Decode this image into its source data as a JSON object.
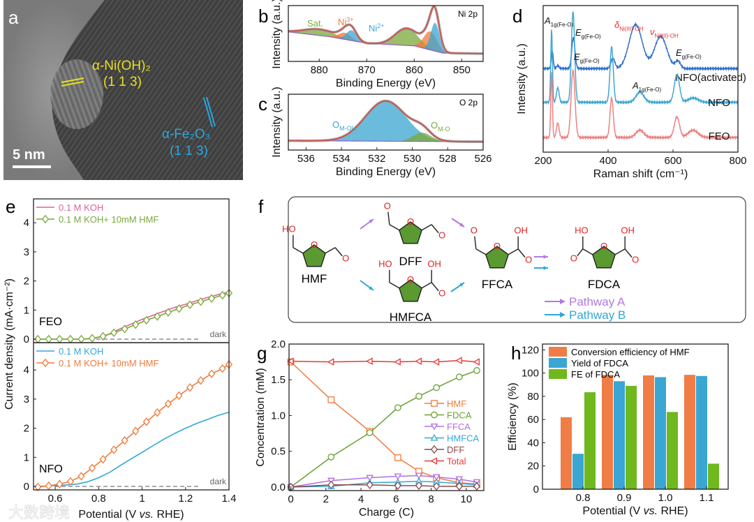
{
  "panel_labels": {
    "a": "a",
    "b": "b",
    "c": "c",
    "d": "d",
    "e": "e",
    "f": "f",
    "g": "g",
    "h": "h"
  },
  "panel_a": {
    "phase1": "α-Ni(OH)₂",
    "phase1_plane": "(1 1 3)",
    "phase2": "α-Fe₂O₃",
    "phase2_plane": "(1 1 3)",
    "scale_bar": "5 nm",
    "colors": {
      "phase1": "#e8e020",
      "phase2": "#2aa7e0"
    }
  },
  "watermark": "大数跨境",
  "chart_data": [
    {
      "id": "b",
      "type": "area",
      "title": "Ni 2p",
      "xlabel": "Binding Energy (eV)",
      "ylabel": "Intensity (a.u.)",
      "xlim": [
        886.5,
        845.5
      ],
      "xticks": [
        880,
        870,
        860,
        850
      ],
      "baseline": [
        [
          886.5,
          0.49
        ],
        [
          878,
          0.4
        ],
        [
          870,
          0.27
        ],
        [
          860,
          0.22
        ],
        [
          854,
          0.08
        ],
        [
          845.5,
          0.07
        ]
      ],
      "components": [
        {
          "name": "Sat.",
          "center": 880,
          "height": 0.12,
          "width": 3.2,
          "color": "#7aa83a"
        },
        {
          "name": "Ni3+",
          "center": 874.6,
          "height": 0.13,
          "width": 1.3,
          "color": "#f07a3a"
        },
        {
          "name": "Ni2+",
          "center": 873.2,
          "height": 0.2,
          "width": 1.1,
          "color": "#3aa6d0"
        },
        {
          "name": "Sat.",
          "center": 861.6,
          "height": 0.33,
          "width": 2.4,
          "color": "#7aa83a"
        },
        {
          "name": "Ni3+",
          "center": 856.6,
          "height": 0.36,
          "width": 1.4,
          "color": "#f07a3a"
        },
        {
          "name": "Ni2+",
          "center": 855.6,
          "height": 0.55,
          "width": 0.9,
          "color": "#3aa6d0"
        }
      ],
      "annotations": [
        {
          "text": "Sat.",
          "color": "#7aa83a"
        },
        {
          "text": "Ni",
          "sup": "3+",
          "color": "#f07a3a"
        },
        {
          "text": "Ni",
          "sup": "2+",
          "color": "#3aa6d0"
        }
      ]
    },
    {
      "id": "c",
      "type": "area",
      "title": "O 2p",
      "xlabel": "Binding Energy (eV)",
      "ylabel": "Intensity (a.u.)",
      "xlim": [
        537,
        526
      ],
      "xticks": [
        536,
        534,
        532,
        530,
        528,
        526
      ],
      "baseline": [
        [
          537,
          0.1
        ],
        [
          526,
          0.08
        ]
      ],
      "components": [
        {
          "name": "O M-OH",
          "center": 531.5,
          "height": 0.78,
          "width": 1.15,
          "color": "#3aa6d0"
        },
        {
          "name": "O M-O",
          "center": 529.45,
          "height": 0.17,
          "width": 0.5,
          "color": "#7aa83a"
        }
      ],
      "annotations": [
        {
          "text": "O",
          "sub": "M-OH",
          "color": "#3aa6d0"
        },
        {
          "text": "O",
          "sub": "M-O",
          "color": "#7aa83a"
        }
      ]
    },
    {
      "id": "d",
      "type": "line",
      "xlabel": "Raman shift (cm⁻¹)",
      "ylabel": "Intensity (a.u.)",
      "xlim": [
        200,
        800
      ],
      "xticks": [
        200,
        400,
        600,
        800
      ],
      "series": [
        {
          "name": "NFO(activated)",
          "color": "#2f6fc9",
          "offset": 0.57,
          "peaks": [
            [
              228,
              0.12,
              3
            ],
            [
              245,
              0.02,
              4
            ],
            [
              293,
              0.21,
              5
            ],
            [
              415,
              0.07,
              6
            ],
            [
              485,
              0.3,
              20
            ],
            [
              562,
              0.22,
              19
            ],
            [
              615,
              0.05,
              8
            ]
          ]
        },
        {
          "name": "NFO",
          "color": "#3fa6d2",
          "offset": 0.34,
          "peaks": [
            [
              226,
              0.5,
              2.5
            ],
            [
              245,
              0.1,
              4
            ],
            [
              292,
              0.62,
              5
            ],
            [
              411,
              0.38,
              5
            ],
            [
              498,
              0.07,
              12
            ],
            [
              612,
              0.19,
              8
            ],
            [
              662,
              0.03,
              15
            ]
          ]
        },
        {
          "name": "FEO",
          "color": "#f08080",
          "offset": 0.1,
          "peaks": [
            [
              226,
              0.45,
              2.5
            ],
            [
              245,
              0.1,
              4
            ],
            [
              292,
              0.46,
              6
            ],
            [
              411,
              0.27,
              5
            ],
            [
              498,
              0.05,
              12
            ],
            [
              612,
              0.14,
              8
            ],
            [
              662,
              0.05,
              15
            ]
          ]
        }
      ],
      "annotations": [
        {
          "main": "A",
          "sub": "1g(Fe-O)",
          "color": "#111"
        },
        {
          "main": "E",
          "sub": "g(Fe-O)",
          "color": "#111"
        },
        {
          "main": "E",
          "sub": "g(Fe-O)",
          "color": "#111"
        },
        {
          "main": "δ",
          "sub": "Ni(III)-OH",
          "color": "#e83030"
        },
        {
          "main": "ν",
          "sub": "Ni(III)-OH",
          "color": "#e83030"
        },
        {
          "main": "E",
          "sub": "g(Fe-O)",
          "color": "#111"
        },
        {
          "main": "A",
          "sub": "1g(Fe-O)",
          "color": "#111"
        }
      ]
    },
    {
      "id": "e",
      "type": "line",
      "xlabel": "Potential (V vs. RHE)",
      "xlabel_parts": [
        "Potential (V ",
        "vs.",
        " RHE)"
      ],
      "ylabel": "Current density (mA·cm⁻²)",
      "xlim": [
        0.5,
        1.4
      ],
      "xticks": [
        0.6,
        0.8,
        1.0,
        1.2,
        1.4
      ],
      "ylim": [
        0,
        4.6
      ],
      "yticks": [
        0,
        1,
        2,
        3,
        4
      ],
      "dark_label": "dark",
      "panels": [
        {
          "name": "FEO",
          "series": [
            {
              "name": "0.1 M KOH",
              "color": "#e0609a",
              "marker": "none",
              "x": [
                0.5,
                0.6,
                0.7,
                0.75,
                0.8,
                0.85,
                0.9,
                0.95,
                1.0,
                1.05,
                1.1,
                1.15,
                1.2,
                1.25,
                1.3,
                1.35,
                1.4
              ],
              "y": [
                0,
                0,
                0,
                0.01,
                0.06,
                0.18,
                0.36,
                0.52,
                0.68,
                0.82,
                0.96,
                1.09,
                1.2,
                1.32,
                1.43,
                1.53,
                1.62
              ]
            },
            {
              "name": "0.1 M KOH+ 10mM HMF",
              "color": "#7aa83a",
              "marker": "diamond",
              "x": [
                0.52,
                0.57,
                0.62,
                0.67,
                0.72,
                0.77,
                0.82,
                0.87,
                0.92,
                0.97,
                1.02,
                1.07,
                1.12,
                1.17,
                1.22,
                1.27,
                1.32,
                1.37,
                1.4
              ],
              "y": [
                0,
                0,
                0,
                0,
                0,
                0.03,
                0.1,
                0.22,
                0.35,
                0.5,
                0.65,
                0.78,
                0.92,
                1.05,
                1.18,
                1.29,
                1.4,
                1.51,
                1.58
              ]
            }
          ]
        },
        {
          "name": "NFO",
          "series": [
            {
              "name": "0.1 M KOH",
              "color": "#2fa8d8",
              "marker": "none",
              "x": [
                0.5,
                0.55,
                0.6,
                0.65,
                0.7,
                0.75,
                0.8,
                0.85,
                0.9,
                0.95,
                1.0,
                1.05,
                1.1,
                1.15,
                1.2,
                1.25,
                1.3,
                1.35,
                1.4
              ],
              "y": [
                0,
                0.01,
                0.03,
                0.05,
                0.08,
                0.16,
                0.3,
                0.48,
                0.72,
                0.95,
                1.17,
                1.4,
                1.62,
                1.82,
                2.0,
                2.16,
                2.3,
                2.44,
                2.55
              ]
            },
            {
              "name": "0.1 M KOH+ 10mM HMF",
              "color": "#f07a3a",
              "marker": "diamond",
              "x": [
                0.52,
                0.57,
                0.62,
                0.67,
                0.72,
                0.77,
                0.82,
                0.87,
                0.92,
                0.97,
                1.02,
                1.07,
                1.12,
                1.17,
                1.22,
                1.27,
                1.32,
                1.37,
                1.4
              ],
              "y": [
                -0.02,
                0.02,
                0.08,
                0.17,
                0.35,
                0.63,
                0.93,
                1.26,
                1.58,
                1.9,
                2.22,
                2.54,
                2.84,
                3.12,
                3.4,
                3.64,
                3.87,
                4.05,
                4.19
              ]
            }
          ]
        }
      ]
    },
    {
      "id": "g",
      "type": "line",
      "xlabel": "Charge (C)",
      "ylabel": "Concentration (mM)",
      "xlim": [
        -0.1,
        11
      ],
      "ylim": [
        -0.05,
        2.0
      ],
      "xticks": [
        0,
        2,
        4,
        6,
        8,
        10
      ],
      "yticks": [
        0.0,
        0.5,
        1.0,
        1.5,
        2.0
      ],
      "ytick_labels": [
        "0.0",
        "0.5",
        "1.0",
        "1.5",
        "2.0"
      ],
      "x": [
        0,
        2.3,
        4.5,
        6.1,
        7.3,
        8.3,
        9.6,
        10.6
      ],
      "series": [
        {
          "name": "HMF",
          "color": "#f07a3a",
          "marker": "square",
          "values": [
            1.75,
            1.22,
            0.78,
            0.41,
            0.22,
            0.13,
            0.06,
            0.04
          ]
        },
        {
          "name": "FDCA",
          "color": "#6aa030",
          "marker": "circle",
          "values": [
            0.0,
            0.42,
            0.76,
            1.11,
            1.27,
            1.39,
            1.54,
            1.63
          ]
        },
        {
          "name": "FFCA",
          "color": "#b070e0",
          "marker": "tri-down",
          "values": [
            0.0,
            0.09,
            0.13,
            0.15,
            0.16,
            0.14,
            0.11,
            0.07
          ]
        },
        {
          "name": "HMFCA",
          "color": "#2fa8d8",
          "marker": "tri-up",
          "values": [
            0.0,
            0.01,
            0.06,
            0.07,
            0.08,
            0.07,
            0.05,
            0.03
          ]
        },
        {
          "name": "DFF",
          "color": "#8a4a4a",
          "marker": "diamond",
          "values": [
            0.0,
            0.03,
            0.03,
            0.02,
            0.02,
            0.01,
            0.01,
            0.01
          ]
        },
        {
          "name": "Total",
          "color": "#e83838",
          "marker": "tri-left",
          "values": [
            1.76,
            1.75,
            1.76,
            1.75,
            1.76,
            1.75,
            1.77,
            1.75
          ]
        }
      ]
    },
    {
      "id": "h",
      "type": "bar",
      "xlabel": "Potential (V vs. RHE)",
      "xlabel_parts": [
        "Potential (V ",
        "vs.",
        " RHE)"
      ],
      "ylabel": "Efficiency (%)",
      "categories": [
        "0.8",
        "0.9",
        "1.0",
        "1.1"
      ],
      "ylim": [
        0,
        125
      ],
      "yticks": [
        0,
        20,
        40,
        60,
        80,
        100,
        120
      ],
      "series": [
        {
          "name": "Conversion efficiency of HMF",
          "color": "#f07d45",
          "values": [
            62,
            98.5,
            98,
            98.5
          ]
        },
        {
          "name": "Yield of FDCA",
          "color": "#3aa6d4",
          "values": [
            30.5,
            93,
            96.5,
            97.5
          ]
        },
        {
          "name": "FE of FDCA",
          "color": "#6fb81e",
          "values": [
            83.5,
            89,
            66.5,
            22
          ]
        }
      ]
    }
  ],
  "scheme": {
    "molecules": {
      "hmf": "HMF",
      "dff": "DFF",
      "hmfca": "HMFCA",
      "ffca": "FFCA",
      "fdca": "FDCA"
    },
    "atoms": {
      "o": "O",
      "ho": "HO",
      "oh": "OH"
    },
    "legend": {
      "a": "Pathway A",
      "b": "Pathway B"
    },
    "colors": {
      "a": "#b07ae0",
      "b": "#2fa8d8",
      "ring": "#5a9a30",
      "atom": "#e02020"
    }
  }
}
